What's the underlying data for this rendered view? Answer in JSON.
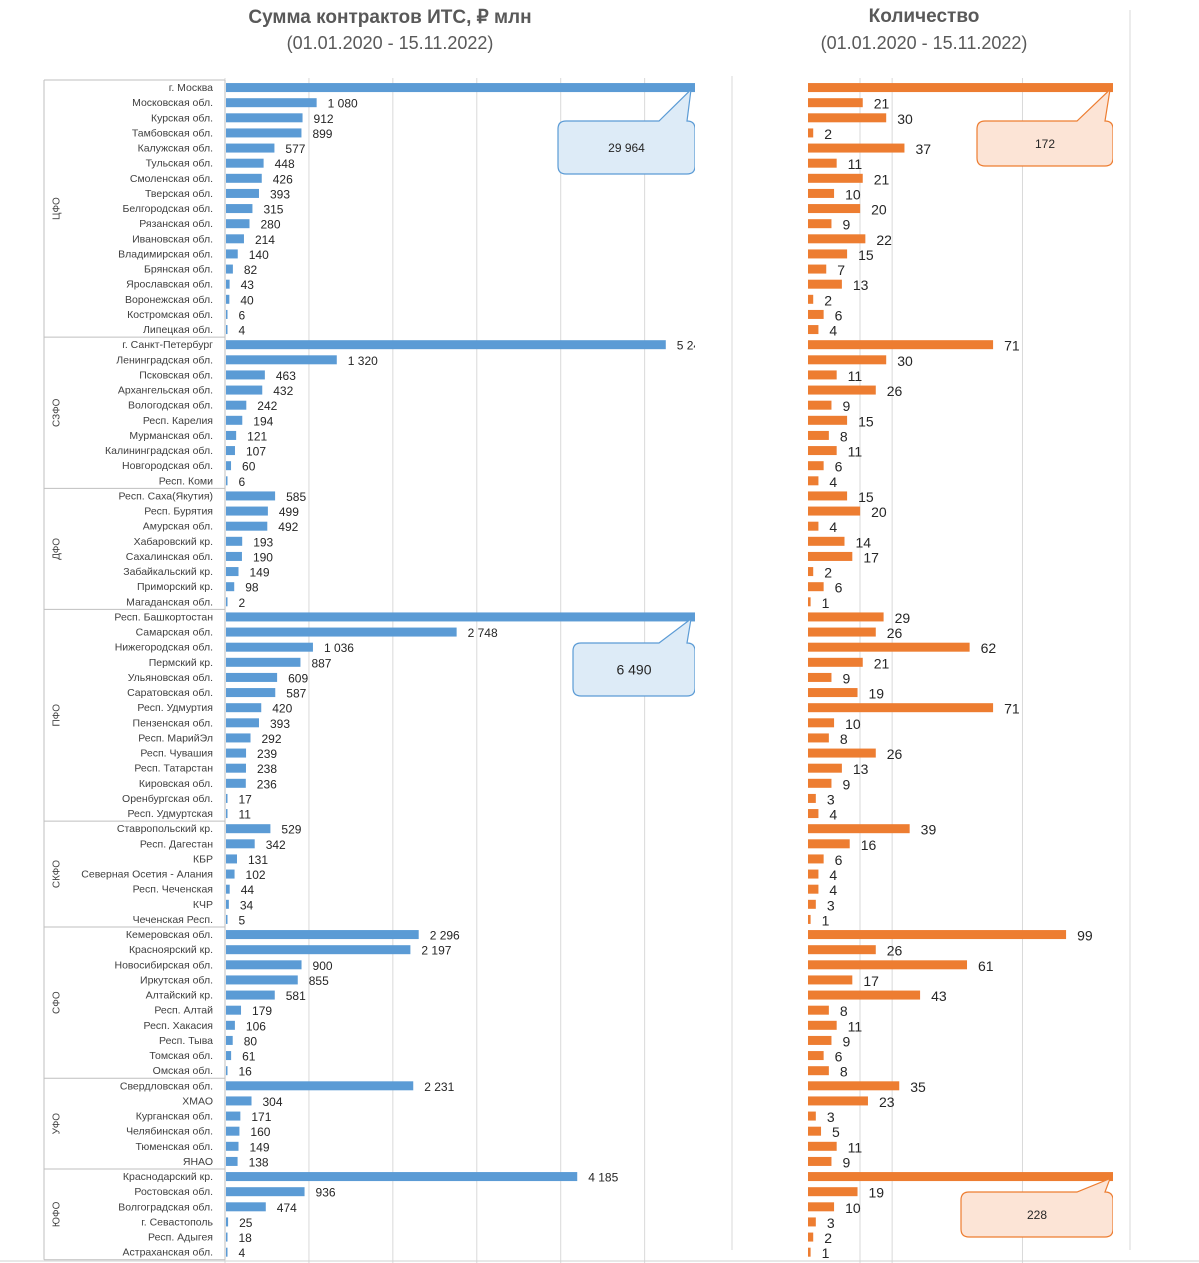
{
  "chart_data": [
    {
      "type": "bar",
      "orientation": "horizontal",
      "title": "Сумма контрактов ИТС, ₽ млн",
      "subtitle": "(01.01.2020 - 15.11.2022)",
      "unit": "₽ млн",
      "color": "#5B9BD5",
      "xlim": [
        0,
        5600
      ],
      "grid": true,
      "clipped_value_labels": [
        "5 24"
      ],
      "callouts": [
        {
          "category": "г. Москва",
          "label": "29 964"
        },
        {
          "category": "Респ. Башкортостан",
          "label": "6 490"
        }
      ]
    },
    {
      "type": "bar",
      "orientation": "horizontal",
      "title": "Количество",
      "subtitle": "(01.01.2020 - 15.11.2022)",
      "unit": "шт",
      "color": "#ED7D31",
      "xlim": [
        0,
        117
      ],
      "grid": true,
      "callouts": [
        {
          "category": "г. Москва",
          "label": "172"
        },
        {
          "category": "Краснодарский кр.",
          "label": "228"
        }
      ]
    }
  ],
  "groups": [
    {
      "name": "ЦФО",
      "rows": [
        {
          "label": "г. Москва",
          "sum": 29964,
          "sum_label": "",
          "count": 172,
          "count_label": ""
        },
        {
          "label": "Московская обл.",
          "sum": 1080,
          "sum_label": "1 080",
          "count": 21,
          "count_label": "21"
        },
        {
          "label": "Курская обл.",
          "sum": 912,
          "sum_label": "912",
          "count": 30,
          "count_label": "30"
        },
        {
          "label": "Тамбовская обл.",
          "sum": 899,
          "sum_label": "899",
          "count": 2,
          "count_label": "2"
        },
        {
          "label": "Калужская обл.",
          "sum": 577,
          "sum_label": "577",
          "count": 37,
          "count_label": "37"
        },
        {
          "label": "Тульская обл.",
          "sum": 448,
          "sum_label": "448",
          "count": 11,
          "count_label": "11"
        },
        {
          "label": "Смоленская обл.",
          "sum": 426,
          "sum_label": "426",
          "count": 21,
          "count_label": "21"
        },
        {
          "label": "Тверская обл.",
          "sum": 393,
          "sum_label": "393",
          "count": 10,
          "count_label": "10"
        },
        {
          "label": "Белгородская обл.",
          "sum": 315,
          "sum_label": "315",
          "count": 20,
          "count_label": "20"
        },
        {
          "label": "Рязанская обл.",
          "sum": 280,
          "sum_label": "280",
          "count": 9,
          "count_label": "9"
        },
        {
          "label": "Ивановская обл.",
          "sum": 214,
          "sum_label": "214",
          "count": 22,
          "count_label": "22"
        },
        {
          "label": "Владимирская обл.",
          "sum": 140,
          "sum_label": "140",
          "count": 15,
          "count_label": "15"
        },
        {
          "label": "Брянская обл.",
          "sum": 82,
          "sum_label": "82",
          "count": 7,
          "count_label": "7"
        },
        {
          "label": "Ярославская обл.",
          "sum": 43,
          "sum_label": "43",
          "count": 13,
          "count_label": "13"
        },
        {
          "label": "Воронежская обл.",
          "sum": 40,
          "sum_label": "40",
          "count": 2,
          "count_label": "2"
        },
        {
          "label": "Костромская обл.",
          "sum": 6,
          "sum_label": "6",
          "count": 6,
          "count_label": "6"
        },
        {
          "label": "Липецкая обл.",
          "sum": 4,
          "sum_label": "4",
          "count": 4,
          "count_label": "4"
        }
      ]
    },
    {
      "name": "СЗФО",
      "rows": [
        {
          "label": "г. Санкт-Петербург",
          "sum": 5240,
          "sum_label": "5 24",
          "count": 71,
          "count_label": "71"
        },
        {
          "label": "Ленинградская обл.",
          "sum": 1320,
          "sum_label": "1 320",
          "count": 30,
          "count_label": "30"
        },
        {
          "label": "Псковская обл.",
          "sum": 463,
          "sum_label": "463",
          "count": 11,
          "count_label": "11"
        },
        {
          "label": "Архангельская обл.",
          "sum": 432,
          "sum_label": "432",
          "count": 26,
          "count_label": "26"
        },
        {
          "label": "Вологодская обл.",
          "sum": 242,
          "sum_label": "242",
          "count": 9,
          "count_label": "9"
        },
        {
          "label": "Респ. Карелия",
          "sum": 194,
          "sum_label": "194",
          "count": 15,
          "count_label": "15"
        },
        {
          "label": "Мурманская обл.",
          "sum": 121,
          "sum_label": "121",
          "count": 8,
          "count_label": "8"
        },
        {
          "label": "Калининградская обл.",
          "sum": 107,
          "sum_label": "107",
          "count": 11,
          "count_label": "11"
        },
        {
          "label": "Новгородская обл.",
          "sum": 60,
          "sum_label": "60",
          "count": 6,
          "count_label": "6"
        },
        {
          "label": "Респ. Коми",
          "sum": 6,
          "sum_label": "6",
          "count": 4,
          "count_label": "4"
        }
      ]
    },
    {
      "name": "ДФО",
      "rows": [
        {
          "label": "Респ. Саха(Якутия)",
          "sum": 585,
          "sum_label": "585",
          "count": 15,
          "count_label": "15"
        },
        {
          "label": "Респ. Бурятия",
          "sum": 499,
          "sum_label": "499",
          "count": 20,
          "count_label": "20"
        },
        {
          "label": "Амурская обл.",
          "sum": 492,
          "sum_label": "492",
          "count": 4,
          "count_label": "4"
        },
        {
          "label": "Хабаровский кр.",
          "sum": 193,
          "sum_label": "193",
          "count": 14,
          "count_label": "14"
        },
        {
          "label": "Сахалинская обл.",
          "sum": 190,
          "sum_label": "190",
          "count": 17,
          "count_label": "17"
        },
        {
          "label": "Забайкальский кр.",
          "sum": 149,
          "sum_label": "149",
          "count": 2,
          "count_label": "2"
        },
        {
          "label": "Приморский кр.",
          "sum": 98,
          "sum_label": "98",
          "count": 6,
          "count_label": "6"
        },
        {
          "label": "Магаданская обл.",
          "sum": 2,
          "sum_label": "2",
          "count": 1,
          "count_label": "1"
        }
      ]
    },
    {
      "name": "ПФО",
      "rows": [
        {
          "label": "Респ. Башкортостан",
          "sum": 6490,
          "sum_label": "",
          "count": 29,
          "count_label": "29"
        },
        {
          "label": "Самарская обл.",
          "sum": 2748,
          "sum_label": "2 748",
          "count": 26,
          "count_label": "26"
        },
        {
          "label": "Нижегородская обл.",
          "sum": 1036,
          "sum_label": "1 036",
          "count": 62,
          "count_label": "62"
        },
        {
          "label": "Пермский кр.",
          "sum": 887,
          "sum_label": "887",
          "count": 21,
          "count_label": "21"
        },
        {
          "label": "Ульяновская обл.",
          "sum": 609,
          "sum_label": "609",
          "count": 9,
          "count_label": "9"
        },
        {
          "label": "Саратовская обл.",
          "sum": 587,
          "sum_label": "587",
          "count": 19,
          "count_label": "19"
        },
        {
          "label": "Респ. Удмуртия",
          "sum": 420,
          "sum_label": "420",
          "count": 71,
          "count_label": "71"
        },
        {
          "label": "Пензенская обл.",
          "sum": 393,
          "sum_label": "393",
          "count": 10,
          "count_label": "10"
        },
        {
          "label": "Респ. МарийЭл",
          "sum": 292,
          "sum_label": "292",
          "count": 8,
          "count_label": "8"
        },
        {
          "label": "Респ. Чувашия",
          "sum": 239,
          "sum_label": "239",
          "count": 26,
          "count_label": "26"
        },
        {
          "label": "Респ. Татарстан",
          "sum": 238,
          "sum_label": "238",
          "count": 13,
          "count_label": "13"
        },
        {
          "label": "Кировская обл.",
          "sum": 236,
          "sum_label": "236",
          "count": 9,
          "count_label": "9"
        },
        {
          "label": "Оренбургская обл.",
          "sum": 17,
          "sum_label": "17",
          "count": 3,
          "count_label": "3"
        },
        {
          "label": "Респ. Удмуртская",
          "sum": 11,
          "sum_label": "11",
          "count": 4,
          "count_label": "4"
        }
      ]
    },
    {
      "name": "СКФО",
      "rows": [
        {
          "label": "Ставропольский кр.",
          "sum": 529,
          "sum_label": "529",
          "count": 39,
          "count_label": "39"
        },
        {
          "label": "Респ. Дагестан",
          "sum": 342,
          "sum_label": "342",
          "count": 16,
          "count_label": "16"
        },
        {
          "label": "КБР",
          "sum": 131,
          "sum_label": "131",
          "count": 6,
          "count_label": "6"
        },
        {
          "label": "Северная Осетия - Алания",
          "sum": 102,
          "sum_label": "102",
          "count": 4,
          "count_label": "4"
        },
        {
          "label": "Респ. Чеченская",
          "sum": 44,
          "sum_label": "44",
          "count": 4,
          "count_label": "4"
        },
        {
          "label": "КЧР",
          "sum": 34,
          "sum_label": "34",
          "count": 3,
          "count_label": "3"
        },
        {
          "label": "Чеченская Респ.",
          "sum": 5,
          "sum_label": "5",
          "count": 1,
          "count_label": "1"
        }
      ]
    },
    {
      "name": "СФО",
      "rows": [
        {
          "label": "Кемеровская обл.",
          "sum": 2296,
          "sum_label": "2 296",
          "count": 99,
          "count_label": "99"
        },
        {
          "label": "Красноярский кр.",
          "sum": 2197,
          "sum_label": "2 197",
          "count": 26,
          "count_label": "26"
        },
        {
          "label": "Новосибирская обл.",
          "sum": 900,
          "sum_label": "900",
          "count": 61,
          "count_label": "61"
        },
        {
          "label": "Иркутская обл.",
          "sum": 855,
          "sum_label": "855",
          "count": 17,
          "count_label": "17"
        },
        {
          "label": "Алтайский кр.",
          "sum": 581,
          "sum_label": "581",
          "count": 43,
          "count_label": "43"
        },
        {
          "label": "Респ. Алтай",
          "sum": 179,
          "sum_label": "179",
          "count": 8,
          "count_label": "8"
        },
        {
          "label": "Респ. Хакасия",
          "sum": 106,
          "sum_label": "106",
          "count": 11,
          "count_label": "11"
        },
        {
          "label": "Респ. Тыва",
          "sum": 80,
          "sum_label": "80",
          "count": 9,
          "count_label": "9"
        },
        {
          "label": "Томская обл.",
          "sum": 61,
          "sum_label": "61",
          "count": 6,
          "count_label": "6"
        },
        {
          "label": "Омская обл.",
          "sum": 16,
          "sum_label": "16",
          "count": 8,
          "count_label": "8"
        }
      ]
    },
    {
      "name": "УФО",
      "rows": [
        {
          "label": "Свердловская обл.",
          "sum": 2231,
          "sum_label": "2 231",
          "count": 35,
          "count_label": "35"
        },
        {
          "label": "ХМАО",
          "sum": 304,
          "sum_label": "304",
          "count": 23,
          "count_label": "23"
        },
        {
          "label": "Курганская обл.",
          "sum": 171,
          "sum_label": "171",
          "count": 3,
          "count_label": "3"
        },
        {
          "label": "Челябинская обл.",
          "sum": 160,
          "sum_label": "160",
          "count": 5,
          "count_label": "5"
        },
        {
          "label": "Тюменская обл.",
          "sum": 149,
          "sum_label": "149",
          "count": 11,
          "count_label": "11"
        },
        {
          "label": "ЯНАО",
          "sum": 138,
          "sum_label": "138",
          "count": 9,
          "count_label": "9"
        }
      ]
    },
    {
      "name": "ЮФО",
      "rows": [
        {
          "label": "Краснодарский кр.",
          "sum": 4185,
          "sum_label": "4 185",
          "count": 228,
          "count_label": ""
        },
        {
          "label": "Ростовская обл.",
          "sum": 936,
          "sum_label": "936",
          "count": 19,
          "count_label": "19"
        },
        {
          "label": "Волгоградская обл.",
          "sum": 474,
          "sum_label": "474",
          "count": 10,
          "count_label": "10"
        },
        {
          "label": "г. Севастополь",
          "sum": 25,
          "sum_label": "25",
          "count": 3,
          "count_label": "3"
        },
        {
          "label": "Респ. Адыгея",
          "sum": 18,
          "sum_label": "18",
          "count": 2,
          "count_label": "2"
        },
        {
          "label": "Астраханская обл.",
          "sum": 4,
          "sum_label": "4",
          "count": 1,
          "count_label": "1"
        }
      ]
    }
  ]
}
